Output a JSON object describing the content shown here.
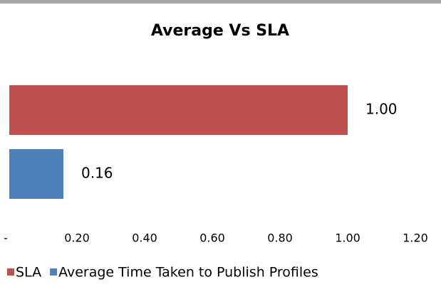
{
  "chart_data": {
    "type": "bar",
    "orientation": "horizontal",
    "title": "Average Vs SLA",
    "series": [
      {
        "name": "SLA",
        "color": "#c0504d",
        "values": [
          1
        ],
        "value_labels": [
          "1.00"
        ]
      },
      {
        "name": "Average Time Taken to Publish Profiles",
        "color": "#4f81bd",
        "values": [
          0.16
        ],
        "value_labels": [
          "0.16"
        ]
      }
    ],
    "xlim": [
      0,
      1.2
    ],
    "xticks": [
      {
        "value": 0,
        "label": "-"
      },
      {
        "value": 0.2,
        "label": "0.20"
      },
      {
        "value": 0.4,
        "label": "0.40"
      },
      {
        "value": 0.6,
        "label": "0.60"
      },
      {
        "value": 0.8,
        "label": "0.80"
      },
      {
        "value": 1,
        "label": "1.00"
      },
      {
        "value": 1.2,
        "label": "1.20"
      }
    ],
    "grid": false,
    "legend": "bottom"
  }
}
